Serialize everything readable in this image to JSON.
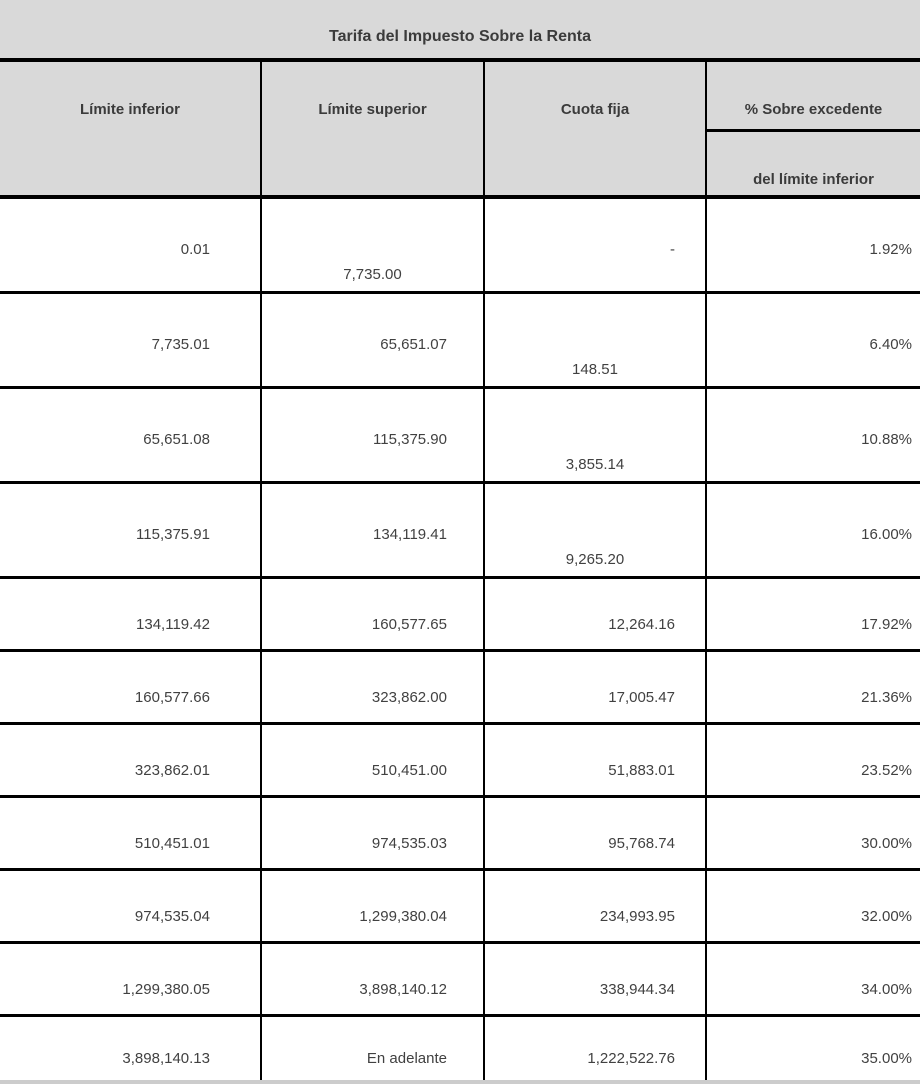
{
  "title": "Tarifa del Impuesto Sobre la Renta",
  "header": {
    "col1": "Límite inferior",
    "col2": "Límite superior",
    "col3": "Cuota fija",
    "col4_line1": "% Sobre excedente",
    "col4_line2": "del límite inferior"
  },
  "column_keys": [
    "limite-inferior",
    "limite-superior",
    "cuota-fija",
    "porcentaje-sobre-excedente"
  ],
  "rows": [
    [
      "0.01",
      "7,735.00",
      "-",
      "1.92%"
    ],
    [
      "7,735.01",
      "65,651.07",
      "148.51",
      "6.40%"
    ],
    [
      "65,651.08",
      "115,375.90",
      "3,855.14",
      "10.88%"
    ],
    [
      "115,375.91",
      "134,119.41",
      "9,265.20",
      "16.00%"
    ],
    [
      "134,119.42",
      "160,577.65",
      "12,264.16",
      "17.92%"
    ],
    [
      "160,577.66",
      "323,862.00",
      "17,005.47",
      "21.36%"
    ],
    [
      "323,862.01",
      "510,451.00",
      "51,883.01",
      "23.52%"
    ],
    [
      "510,451.01",
      "974,535.03",
      "95,768.74",
      "30.00%"
    ],
    [
      "974,535.04",
      "1,299,380.04",
      "234,993.95",
      "32.00%"
    ],
    [
      "1,299,380.05",
      "3,898,140.12",
      "338,944.34",
      "34.00%"
    ],
    [
      "3,898,140.13",
      "En adelante",
      "1,222,522.76",
      "35.00%"
    ]
  ],
  "offset_cells": [
    [
      0,
      1
    ],
    [
      1,
      2
    ],
    [
      2,
      2
    ],
    [
      3,
      2
    ]
  ],
  "colors": {
    "header_bg": "#d9d9d9",
    "border": "#000000",
    "header_text": "#3b3b3b",
    "cell_text": "#414141",
    "bottom_strip": "#cccccc"
  }
}
